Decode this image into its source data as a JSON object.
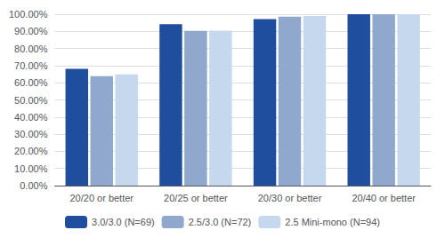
{
  "chart_data": {
    "type": "bar",
    "categories": [
      "20/20 or better",
      "20/25 or better",
      "20/30 or better",
      "20/40 or better"
    ],
    "series": [
      {
        "name": "3.0/3.0 (N=69)",
        "color": "#1f4e9e",
        "values": [
          0.6812,
          0.942,
          0.971,
          1.0
        ]
      },
      {
        "name": "2.5/3.0 (N=72)",
        "color": "#8fa8cc",
        "values": [
          0.6389,
          0.9028,
          0.9861,
          1.0
        ]
      },
      {
        "name": "2.5 Mini-mono (N=94)",
        "color": "#c5d8ee",
        "values": [
          0.6489,
          0.9043,
          0.9894,
          1.0
        ]
      }
    ],
    "ylim": [
      0.0,
      1.0
    ],
    "yticks": [
      {
        "value": 0.0,
        "label": "0.00%"
      },
      {
        "value": 0.1,
        "label": "10.00%"
      },
      {
        "value": 0.2,
        "label": "20.00%"
      },
      {
        "value": 0.3,
        "label": "30.00%"
      },
      {
        "value": 0.4,
        "label": "40.00%"
      },
      {
        "value": 0.5,
        "label": "50.00%"
      },
      {
        "value": 0.6,
        "label": "60.00%"
      },
      {
        "value": 0.7,
        "label": "70.00%"
      },
      {
        "value": 0.8,
        "label": "80.00%"
      },
      {
        "value": 0.9,
        "label": "90.00%"
      },
      {
        "value": 1.0,
        "label": "100.00%"
      }
    ],
    "grid": true,
    "legend": "bottom"
  }
}
